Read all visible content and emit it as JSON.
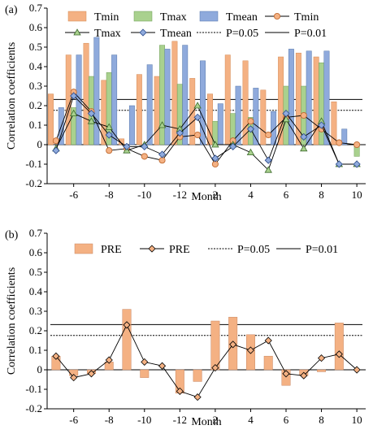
{
  "chart_data": [
    {
      "panel_label": "(a)",
      "type": "bar+line",
      "xlabel": "Month",
      "ylabel": "Correlation coefficients",
      "ylim": [
        -0.2,
        0.7
      ],
      "yticks": [
        "-0.2",
        "-0.1",
        "0",
        "0.1",
        "0.2",
        "0.3",
        "0.4",
        "0.5",
        "0.6",
        "0.7"
      ],
      "months": [
        -5,
        -6,
        -7,
        -8,
        -9,
        -10,
        -11,
        -12,
        1,
        2,
        3,
        4,
        5,
        6,
        7,
        8,
        9,
        10
      ],
      "xtick_labels": [
        "-6",
        "-8",
        "-10",
        "-12",
        "2",
        "4",
        "6",
        "8",
        "10"
      ],
      "legend_position": "top",
      "legend": [
        "Tmin",
        "Tmax",
        "Tmean",
        "Tmin",
        "Tmax",
        "Tmean",
        "P=0.05",
        "P=0.01"
      ],
      "colors": {
        "Tmin": "#f4b183",
        "Tmax": "#a9d18e",
        "Tmean": "#8faadc",
        "line": "#000000",
        "marker_tmin": "#f4b183",
        "marker_tmax": "#a9d18e",
        "marker_tmean": "#8faadc"
      },
      "series": [
        {
          "name": "Tmin",
          "kind": "bar",
          "values": [
            0.26,
            0.46,
            0.52,
            0.33,
            0.03,
            0.36,
            0.35,
            0.53,
            0.34,
            0.26,
            0.46,
            0.43,
            0.28,
            0.45,
            0.47,
            0.45,
            0.22,
            0.0
          ]
        },
        {
          "name": "Tmax",
          "kind": "bar",
          "values": [
            0.0,
            0.19,
            0.35,
            0.37,
            0.0,
            0.0,
            0.51,
            0.31,
            0.0,
            0.12,
            0.16,
            0.14,
            0.0,
            0.3,
            0.3,
            0.42,
            0.0,
            -0.06
          ]
        },
        {
          "name": "Tmean",
          "kind": "bar",
          "values": [
            0.19,
            0.46,
            0.55,
            0.46,
            0.2,
            0.41,
            0.49,
            0.51,
            0.43,
            0.21,
            0.3,
            0.29,
            0.17,
            0.49,
            0.48,
            0.48,
            0.08,
            0.0
          ]
        },
        {
          "name": "Tmin",
          "kind": "line",
          "values": [
            0.02,
            0.27,
            0.17,
            -0.03,
            -0.02,
            -0.06,
            -0.08,
            0.04,
            0.05,
            -0.1,
            0.02,
            0.12,
            0.05,
            0.14,
            0.15,
            0.08,
            0.01,
            0.0
          ]
        },
        {
          "name": "Tmax",
          "kind": "line",
          "values": [
            -0.02,
            0.16,
            0.12,
            0.09,
            -0.03,
            0.0,
            0.1,
            0.08,
            0.2,
            -0.0,
            0.0,
            -0.04,
            -0.13,
            0.13,
            -0.02,
            0.12,
            -0.1,
            -0.1
          ]
        },
        {
          "name": "Tmean",
          "kind": "line",
          "values": [
            -0.03,
            0.25,
            0.16,
            0.05,
            -0.01,
            -0.01,
            -0.05,
            0.06,
            0.14,
            -0.07,
            -0.01,
            0.08,
            -0.08,
            0.16,
            0.04,
            0.1,
            -0.1,
            -0.1
          ]
        }
      ],
      "thresholds": [
        {
          "name": "P=0.05",
          "value": 0.176,
          "style": "dashed"
        },
        {
          "name": "P=0.01",
          "value": 0.232,
          "style": "solid"
        }
      ]
    },
    {
      "panel_label": "(b)",
      "type": "bar+line",
      "xlabel": "Month",
      "ylabel": "Correlation coefficients",
      "ylim": [
        -0.2,
        0.7
      ],
      "yticks": [
        "-0.2",
        "-0.1",
        "0",
        "0.1",
        "0.2",
        "0.3",
        "0.4",
        "0.5",
        "0.6",
        "0.7"
      ],
      "xtick_labels": [
        "-6",
        "-8",
        "-10",
        "-12",
        "2",
        "4",
        "6",
        "8",
        "10"
      ],
      "legend_position": "top",
      "legend": [
        "PRE",
        "PRE",
        "P=0.05",
        "P=0.01"
      ],
      "series": [
        {
          "name": "PRE",
          "kind": "bar",
          "values": [
            0.07,
            -0.03,
            -0.02,
            0.04,
            0.31,
            -0.04,
            0.0,
            -0.12,
            -0.06,
            0.25,
            0.27,
            0.18,
            0.07,
            -0.08,
            -0.03,
            -0.01,
            0.24,
            0.0
          ]
        },
        {
          "name": "PRE",
          "kind": "line",
          "values": [
            0.07,
            -0.04,
            -0.02,
            0.05,
            0.23,
            0.04,
            0.02,
            -0.11,
            -0.14,
            0.01,
            0.13,
            0.1,
            0.15,
            -0.02,
            -0.03,
            0.06,
            0.08,
            0.0
          ]
        }
      ],
      "thresholds": [
        {
          "name": "P=0.05",
          "value": 0.176,
          "style": "dashed"
        },
        {
          "name": "P=0.01",
          "value": 0.232,
          "style": "solid"
        }
      ]
    }
  ]
}
